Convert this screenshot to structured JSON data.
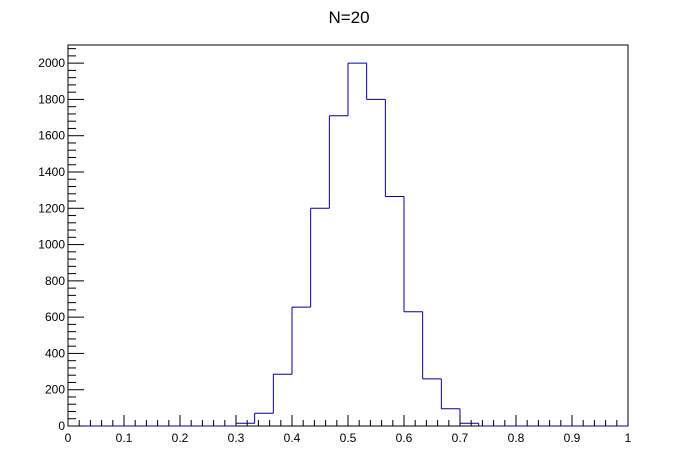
{
  "chart_data": {
    "type": "bar",
    "title": "N=20",
    "xlabel": "",
    "ylabel": "",
    "xlim": [
      0,
      1
    ],
    "ylim": [
      0,
      2100
    ],
    "grid": false,
    "legend": "none",
    "bin_edges": [
      0,
      0.0333,
      0.0667,
      0.1,
      0.1333,
      0.1667,
      0.2,
      0.2333,
      0.2667,
      0.3,
      0.3333,
      0.3667,
      0.4,
      0.4333,
      0.4667,
      0.5,
      0.5333,
      0.5667,
      0.6,
      0.6333,
      0.6667,
      0.7,
      0.7333,
      0.7667,
      0.8,
      0.8333,
      0.8667,
      0.9,
      0.9333,
      0.9667,
      1
    ],
    "values": [
      0,
      0,
      0,
      0,
      0,
      0,
      0,
      0,
      0,
      15,
      70,
      285,
      655,
      1200,
      1710,
      2000,
      1800,
      1265,
      630,
      260,
      95,
      15,
      0,
      0,
      0,
      0,
      0,
      0,
      0,
      0
    ],
    "x_ticks": [
      "0",
      "0.1",
      "0.2",
      "0.3",
      "0.4",
      "0.5",
      "0.6",
      "0.7",
      "0.8",
      "0.9",
      "1"
    ],
    "x_tick_values": [
      0,
      0.1,
      0.2,
      0.3,
      0.4,
      0.5,
      0.6,
      0.7,
      0.8,
      0.9,
      1
    ],
    "y_ticks": [
      "0",
      "200",
      "400",
      "600",
      "800",
      "1000",
      "1200",
      "1400",
      "1600",
      "1800",
      "2000"
    ],
    "y_tick_values": [
      0,
      200,
      400,
      600,
      800,
      1000,
      1200,
      1400,
      1600,
      1800,
      2000
    ],
    "line_color": "#000099",
    "axis_color": "#000000"
  }
}
